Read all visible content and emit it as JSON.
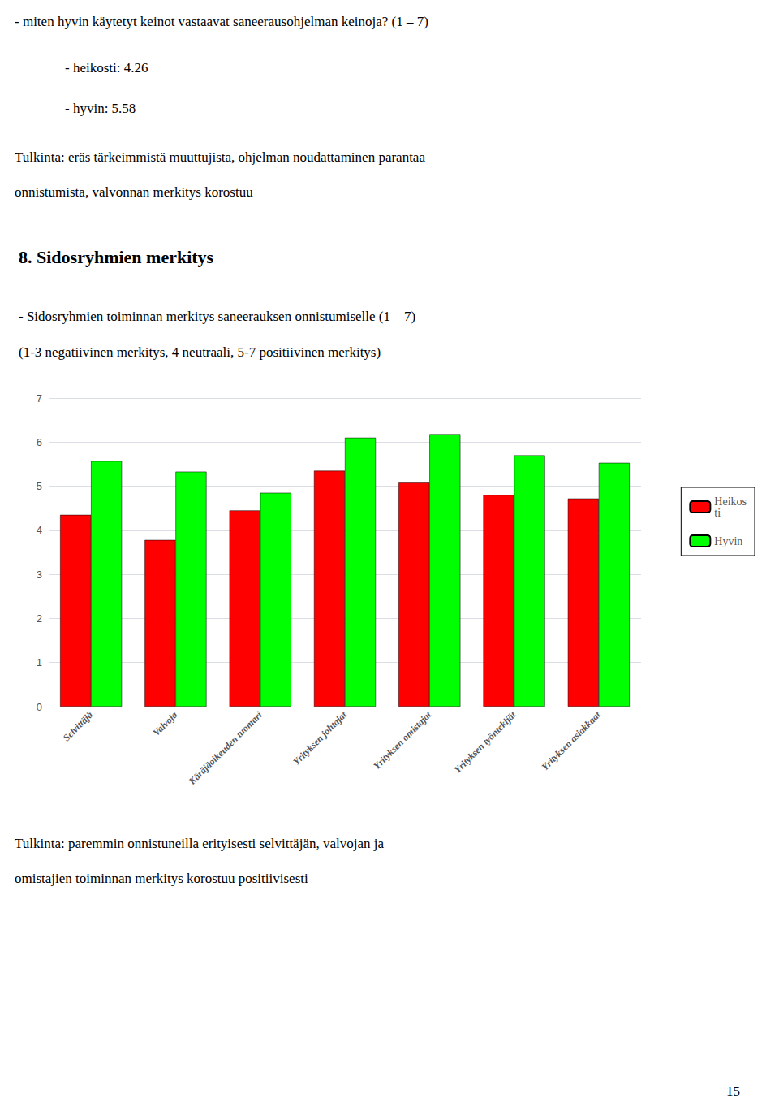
{
  "chart_data": {
    "type": "bar",
    "title": "8. Sidosryhmien merkitys",
    "subtitle": "- Sidosryhmien toiminnan merkitys saneerauksen onnistumiselle (1 – 7)\n(1-3 negatiivinen merkitys, 4 neutraali, 5-7 positiivinen merkitys)",
    "annotations": [
      "- miten hyvin käytetyt keinot vastaavat saneerausohjelman keinoja? (1 – 7)",
      "- heikosti: 4.26",
      "- hyvin: 5.58",
      "Tulkinta: eräs tärkeimmistä muuttujista, ohjelman noudattaminen parantaa",
      "onnistumista, valvonnan merkitys korostuu",
      "Tulkinta: paremmin onnistuneilla erityisesti selvittäjän, valvojan ja",
      "omistajien toiminnan merkitys korostuu positiivisesti",
      "15"
    ],
    "categories": [
      "Selvittäjä",
      "Valvoja",
      "Käräjäoikeuden tuomari",
      "Yrityksen johtajat",
      "Yrityksen omistajat",
      "Yrityksen työntekijät",
      "Yrityksen asiakkaat"
    ],
    "series": [
      {
        "name": "Heikos\nti",
        "color": "#FF0000",
        "values": [
          4.35,
          3.78,
          4.45,
          5.35,
          5.08,
          4.8,
          4.72
        ]
      },
      {
        "name": "Hyvin",
        "color": "#00FF00",
        "values": [
          5.57,
          5.33,
          4.85,
          6.1,
          6.18,
          5.7,
          5.53
        ]
      }
    ],
    "ylim": [
      0,
      7
    ],
    "yticks": [
      0,
      1,
      2,
      3,
      4,
      5,
      6,
      7
    ],
    "grid": true,
    "legend": "right"
  }
}
